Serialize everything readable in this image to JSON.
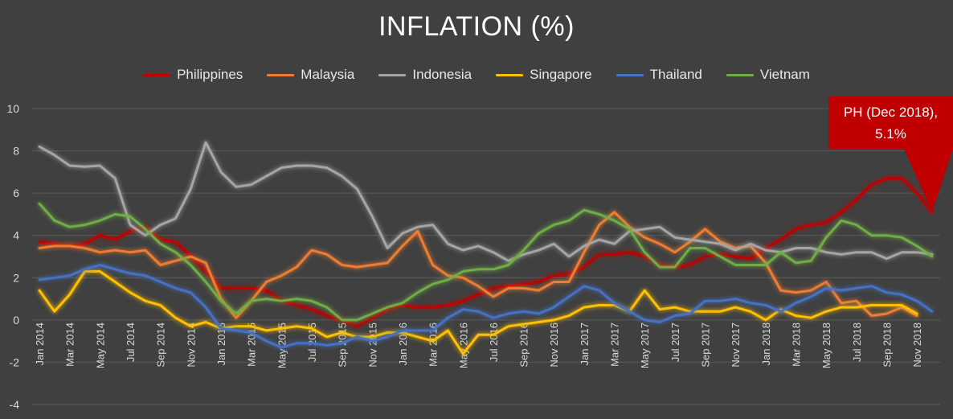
{
  "chart_data": {
    "type": "line",
    "title": "INFLATION (%)",
    "ylim": [
      -4,
      10
    ],
    "yticks": [
      10,
      8,
      6,
      4,
      2,
      0,
      -2,
      -4
    ],
    "grid": true,
    "legend_position": "top",
    "x": [
      "Jan 2014",
      "Feb 2014",
      "Mar 2014",
      "Apr 2014",
      "May 2014",
      "Jun 2014",
      "Jul 2014",
      "Aug 2014",
      "Sep 2014",
      "Oct 2014",
      "Nov 2014",
      "Dec 2014",
      "Jan 2015",
      "Feb 2015",
      "Mar 2015",
      "Apr 2015",
      "May 2015",
      "Jun 2015",
      "Jul 2015",
      "Aug 2015",
      "Sep 2015",
      "Oct 2015",
      "Nov 2015",
      "Dec 2015",
      "Jan 2016",
      "Feb 2016",
      "Mar 2016",
      "Apr 2016",
      "May 2016",
      "Jun 2016",
      "Jul 2016",
      "Aug 2016",
      "Sep 2016",
      "Oct 2016",
      "Nov 2016",
      "Dec 2016",
      "Jan 2017",
      "Feb 2017",
      "Mar 2017",
      "Apr 2017",
      "May 2017",
      "Jun 2017",
      "Jul 2017",
      "Aug 2017",
      "Sep 2017",
      "Oct 2017",
      "Nov 2017",
      "Dec 2017",
      "Jan 2018",
      "Feb 2018",
      "Mar 2018",
      "Apr 2018",
      "May 2018",
      "Jun 2018",
      "Jul 2018",
      "Aug 2018",
      "Sep 2018",
      "Oct 2018",
      "Nov 2018",
      "Dec 2018"
    ],
    "xtick_labels": [
      "Jan 2014",
      "Mar 2014",
      "May 2014",
      "Jul 2014",
      "Sep 2014",
      "Nov 2014",
      "Jan 2015",
      "Mar 2015",
      "May 2015",
      "Jul 2015",
      "Sep 2015",
      "Nov 2015",
      "Jan 2016",
      "Mar 2016",
      "May 2016",
      "Jul 2016",
      "Sep 2016",
      "Nov 2016",
      "Jan 2017",
      "Mar 2017",
      "May 2017",
      "Jul 2017",
      "Sep 2017",
      "Nov 2017",
      "Jan 2018",
      "Mar 2018",
      "May 2018",
      "Jul 2018",
      "Sep 2018",
      "Nov 2018"
    ],
    "series": [
      {
        "name": "Philippines",
        "color": "#c00000",
        "values": [
          3.7,
          3.6,
          3.5,
          3.6,
          4.0,
          3.8,
          4.2,
          4.4,
          3.8,
          3.7,
          3.0,
          2.3,
          1.5,
          1.5,
          1.5,
          1.4,
          0.9,
          0.7,
          0.5,
          0.2,
          0.0,
          -0.3,
          0.1,
          0.5,
          0.7,
          0.6,
          0.6,
          0.7,
          0.9,
          1.2,
          1.5,
          1.6,
          1.7,
          1.8,
          2.1,
          2.2,
          2.5,
          3.1,
          3.1,
          3.2,
          3.0,
          2.6,
          2.5,
          2.6,
          3.0,
          3.1,
          3.0,
          2.9,
          3.4,
          3.8,
          4.3,
          4.5,
          4.6,
          5.1,
          5.7,
          6.4,
          6.7,
          6.7,
          6.0,
          5.1
        ]
      },
      {
        "name": "Malaysia",
        "color": "#ed7d31",
        "values": [
          3.4,
          3.5,
          3.5,
          3.4,
          3.2,
          3.3,
          3.2,
          3.3,
          2.6,
          2.8,
          3.0,
          2.7,
          1.0,
          0.1,
          0.9,
          1.8,
          2.1,
          2.5,
          3.3,
          3.1,
          2.6,
          2.5,
          2.6,
          2.7,
          3.5,
          4.2,
          2.6,
          2.1,
          2.0,
          1.6,
          1.1,
          1.5,
          1.5,
          1.4,
          1.8,
          1.8,
          3.2,
          4.5,
          5.1,
          4.4,
          3.9,
          3.6,
          3.2,
          3.7,
          4.3,
          3.7,
          3.4,
          3.5,
          2.7,
          1.4,
          1.3,
          1.4,
          1.8,
          0.8,
          0.9,
          0.2,
          0.3,
          0.6,
          0.2,
          null
        ]
      },
      {
        "name": "Indonesia",
        "color": "#a5a5a5",
        "values": [
          8.2,
          7.8,
          7.3,
          7.25,
          7.3,
          6.7,
          4.5,
          4.0,
          4.5,
          4.8,
          6.2,
          8.4,
          7.0,
          6.3,
          6.4,
          6.8,
          7.2,
          7.3,
          7.3,
          7.2,
          6.8,
          6.2,
          4.9,
          3.4,
          4.1,
          4.4,
          4.5,
          3.6,
          3.3,
          3.5,
          3.2,
          2.8,
          3.1,
          3.3,
          3.6,
          3.0,
          3.5,
          3.8,
          3.6,
          4.2,
          4.3,
          4.4,
          3.9,
          3.8,
          3.7,
          3.6,
          3.3,
          3.6,
          3.3,
          3.2,
          3.4,
          3.4,
          3.2,
          3.1,
          3.2,
          3.2,
          2.9,
          3.2,
          3.2,
          3.1
        ]
      },
      {
        "name": "Singapore",
        "color": "#ffc000",
        "values": [
          1.4,
          0.4,
          1.2,
          2.3,
          2.3,
          1.8,
          1.3,
          0.9,
          0.7,
          0.1,
          -0.3,
          -0.1,
          -0.4,
          -0.3,
          -0.3,
          -0.5,
          -0.4,
          -0.3,
          -0.4,
          -0.8,
          -0.6,
          -0.8,
          -0.8,
          -0.6,
          -0.6,
          -0.8,
          -1.0,
          -0.5,
          -1.6,
          -0.7,
          -0.7,
          -0.3,
          -0.2,
          -0.1,
          0.0,
          0.2,
          0.6,
          0.7,
          0.7,
          0.4,
          1.4,
          0.5,
          0.6,
          0.4,
          0.4,
          0.4,
          0.6,
          0.4,
          0.0,
          0.5,
          0.2,
          0.1,
          0.4,
          0.6,
          0.6,
          0.7,
          0.7,
          0.7,
          0.3,
          null
        ]
      },
      {
        "name": "Thailand",
        "color": "#4472c4",
        "values": [
          1.9,
          2.0,
          2.1,
          2.4,
          2.6,
          2.4,
          2.2,
          2.1,
          1.8,
          1.5,
          1.3,
          0.6,
          -0.4,
          -0.5,
          -0.6,
          -1.0,
          -1.3,
          -1.1,
          -1.1,
          -1.2,
          -1.1,
          -0.8,
          -1.0,
          -0.8,
          -0.5,
          -0.5,
          -0.5,
          0.1,
          0.5,
          0.4,
          0.1,
          0.3,
          0.4,
          0.3,
          0.6,
          1.1,
          1.6,
          1.4,
          0.8,
          0.4,
          -0.0,
          -0.1,
          0.2,
          0.3,
          0.9,
          0.9,
          1.0,
          0.8,
          0.7,
          0.4,
          0.8,
          1.1,
          1.5,
          1.4,
          1.5,
          1.6,
          1.3,
          1.2,
          0.9,
          0.4
        ]
      },
      {
        "name": "Vietnam",
        "color": "#70ad47",
        "values": [
          5.5,
          4.7,
          4.4,
          4.5,
          4.7,
          5.0,
          4.9,
          4.3,
          3.6,
          3.2,
          2.6,
          1.8,
          0.9,
          0.3,
          0.9,
          1.0,
          0.9,
          1.0,
          0.9,
          0.6,
          0.0,
          0.0,
          0.3,
          0.6,
          0.8,
          1.3,
          1.7,
          1.9,
          2.3,
          2.4,
          2.4,
          2.6,
          3.3,
          4.1,
          4.5,
          4.7,
          5.2,
          5.0,
          4.7,
          4.3,
          3.2,
          2.5,
          2.5,
          3.4,
          3.4,
          3.0,
          2.6,
          2.6,
          2.6,
          3.2,
          2.7,
          2.8,
          3.9,
          4.7,
          4.5,
          4.0,
          4.0,
          3.9,
          3.5,
          3.0
        ]
      }
    ],
    "annotation": {
      "text_line1": "PH (Dec 2018),",
      "text_line2": "5.1%",
      "series": "Philippines",
      "x": "Dec 2018",
      "y": 5.1
    }
  }
}
